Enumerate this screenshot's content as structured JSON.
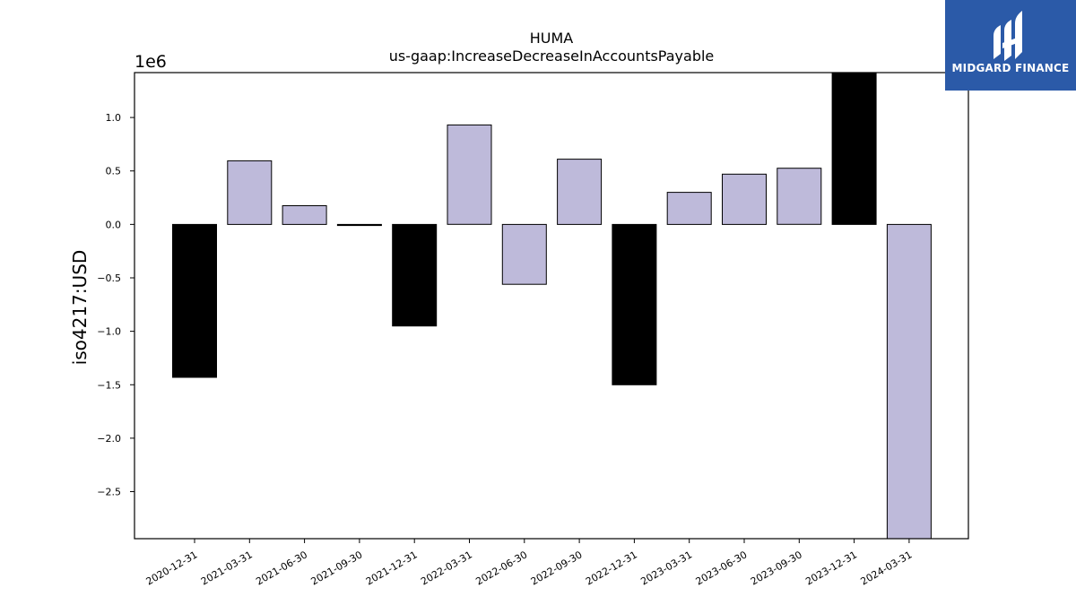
{
  "chart_data": {
    "type": "bar",
    "title": "HUMA",
    "subtitle": "us-gaap:IncreaseDecreaseInAccountsPayable",
    "ylabel": "iso4217:USD",
    "xlabel": "",
    "offset_label": "1e6",
    "categories": [
      "2020-12-31",
      "2021-03-31",
      "2021-06-30",
      "2021-09-30",
      "2021-12-31",
      "2022-03-31",
      "2022-06-30",
      "2022-09-30",
      "2022-12-31",
      "2023-03-31",
      "2023-06-30",
      "2023-09-30",
      "2023-12-31",
      "2024-03-31"
    ],
    "values": [
      -1430000,
      595000,
      175000,
      -10000,
      -950000,
      930000,
      -560000,
      610000,
      -1500000,
      300000,
      470000,
      525000,
      1420000,
      -2940000
    ],
    "ylim": [
      -2940000,
      1420000
    ],
    "yticks": [
      -2.5,
      -2.0,
      -1.5,
      -1.0,
      -0.5,
      0.0,
      0.5,
      1.0
    ],
    "ytick_labels": [
      "−2.5",
      "−2.0",
      "−1.5",
      "−1.0",
      "−0.5",
      "0.0",
      "0.5",
      "1.0"
    ],
    "bar_colors": [
      "#000000",
      "#bebada",
      "#bebada",
      "#000000",
      "#000000",
      "#bebada",
      "#bebada",
      "#bebada",
      "#000000",
      "#bebada",
      "#bebada",
      "#bebada",
      "#000000",
      "#bebada"
    ],
    "grid": false,
    "legend": "none"
  },
  "logo": {
    "text": "MIDGARD FINANCE",
    "background": "#2b5aa8"
  }
}
